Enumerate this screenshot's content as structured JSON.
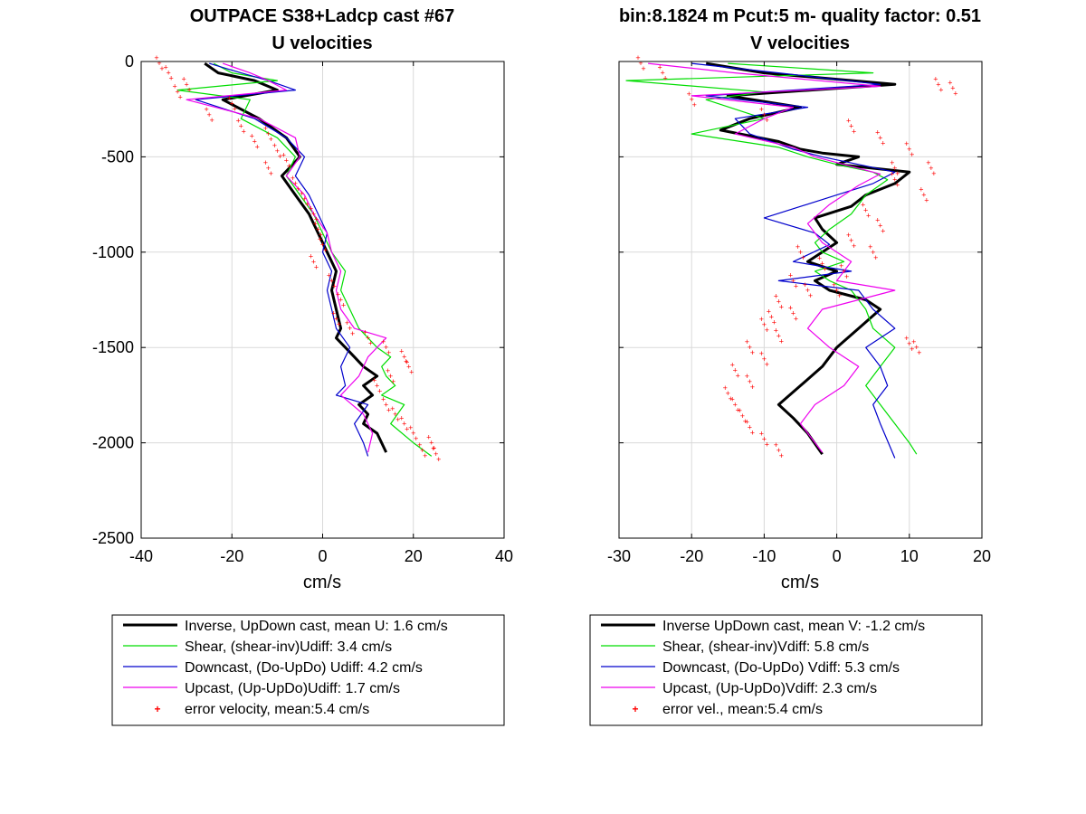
{
  "chart_data": [
    {
      "type": "line",
      "title": "OUTPACE S38+Ladcp cast #67",
      "subtitle": "U velocities",
      "xlabel": "cm/s",
      "ylabel": "",
      "xlim": [
        -40,
        40
      ],
      "ylim": [
        -2500,
        0
      ],
      "xticks": [
        "-40",
        "-20",
        "0",
        "20",
        "40"
      ],
      "yticks": [
        "0",
        "-500",
        "-1000",
        "-1500",
        "-2000",
        "-2500"
      ],
      "grid": true,
      "legend_position": "below",
      "series": [
        {
          "name": "Inverse, UpDown cast, mean U:  1.6 cm/s",
          "color": "#000000",
          "style": "thick-line",
          "x": [
            -26,
            -23,
            -15,
            -10,
            -22,
            -14,
            -8,
            -5,
            -9,
            -6,
            -3,
            -1,
            1,
            3,
            2,
            3,
            4,
            3,
            5,
            7,
            9,
            12,
            9,
            11,
            8,
            10,
            9,
            12,
            14
          ],
          "y": [
            -10,
            -60,
            -100,
            -150,
            -200,
            -300,
            -400,
            -500,
            -600,
            -700,
            -800,
            -900,
            -1000,
            -1100,
            -1200,
            -1300,
            -1400,
            -1450,
            -1500,
            -1550,
            -1600,
            -1650,
            -1700,
            -1750,
            -1800,
            -1850,
            -1900,
            -1950,
            -2050
          ]
        },
        {
          "name": "Shear, (shear-inv)Udiff:  3.4 cm/s",
          "color": "#00dd00",
          "style": "line",
          "x": [
            -24,
            -20,
            -10,
            -32,
            -16,
            -18,
            -10,
            -6,
            -8,
            -5,
            -2,
            0,
            2,
            5,
            4,
            6,
            8,
            12,
            15,
            13,
            14,
            16,
            13,
            18,
            15,
            20,
            24
          ],
          "y": [
            -10,
            -60,
            -100,
            -150,
            -200,
            -300,
            -400,
            -500,
            -600,
            -700,
            -800,
            -900,
            -1000,
            -1100,
            -1200,
            -1300,
            -1400,
            -1500,
            -1550,
            -1600,
            -1650,
            -1700,
            -1750,
            -1800,
            -1900,
            -2000,
            -2070
          ]
        },
        {
          "name": "Downcast, (Do-UpDo) Udiff:  4.2 cm/s",
          "color": "#0000cc",
          "style": "line",
          "x": [
            -25,
            -18,
            -12,
            -6,
            -28,
            -15,
            -8,
            -4,
            -6,
            -3,
            -1,
            1,
            0,
            2,
            1,
            2,
            3,
            6,
            4,
            5,
            3,
            10,
            7,
            9,
            10
          ],
          "y": [
            -10,
            -60,
            -100,
            -150,
            -200,
            -300,
            -400,
            -500,
            -600,
            -700,
            -800,
            -900,
            -1000,
            -1100,
            -1200,
            -1300,
            -1400,
            -1500,
            -1600,
            -1700,
            -1750,
            -1800,
            -1900,
            -2000,
            -2070
          ]
        },
        {
          "name": "Upcast, (Up-UpDo)Udiff:  1.7 cm/s",
          "color": "#ee00ee",
          "style": "line",
          "x": [
            -22,
            -16,
            -12,
            -8,
            -30,
            -14,
            -6,
            -5,
            -8,
            -4,
            -2,
            1,
            2,
            4,
            3,
            4,
            7,
            14,
            10,
            8,
            6,
            4,
            9,
            11,
            10
          ],
          "y": [
            -10,
            -60,
            -100,
            -150,
            -200,
            -300,
            -400,
            -500,
            -600,
            -700,
            -800,
            -900,
            -1000,
            -1100,
            -1200,
            -1300,
            -1400,
            -1450,
            -1550,
            -1650,
            -1700,
            -1750,
            -1850,
            -1950,
            -2050
          ]
        },
        {
          "name": "error velocity, mean:5.4 cm/s",
          "color": "#ff0000",
          "style": "dots",
          "x": [
            -36,
            -34,
            -30,
            -32,
            -20,
            -25,
            -18,
            -12,
            -15,
            -10,
            -8,
            -12,
            -6,
            -4,
            -2,
            -1,
            0,
            -2,
            2,
            4,
            3,
            6,
            10,
            14,
            18,
            19,
            15,
            12,
            14,
            16,
            18,
            20,
            24,
            22,
            25
          ],
          "y": [
            -10,
            -60,
            -120,
            -160,
            -220,
            -280,
            -340,
            -380,
            -420,
            -470,
            -520,
            -560,
            -640,
            -720,
            -800,
            -880,
            -960,
            -1050,
            -1150,
            -1250,
            -1350,
            -1400,
            -1450,
            -1500,
            -1550,
            -1600,
            -1650,
            -1700,
            -1800,
            -1850,
            -1900,
            -1950,
            -2000,
            -2040,
            -2060
          ]
        }
      ]
    },
    {
      "type": "line",
      "title": "bin:8.1824 m  Pcut:5 m- quality factor:  0.51",
      "subtitle": "V velocities",
      "xlabel": "cm/s",
      "ylabel": "",
      "xlim": [
        -30,
        20
      ],
      "ylim": [
        -2500,
        0
      ],
      "xticks": [
        "-30",
        "-20",
        "-10",
        "0",
        "10",
        "20"
      ],
      "yticks": [],
      "grid": true,
      "legend_position": "below",
      "series": [
        {
          "name": "Inverse UpDown cast, mean V:  -1.2 cm/s",
          "color": "#000000",
          "style": "thick-line",
          "x": [
            -18,
            -10,
            8,
            -15,
            -5,
            -12,
            -16,
            -8,
            -5,
            -2,
            3,
            0,
            10,
            8,
            4,
            2,
            -3,
            -2,
            0,
            -2,
            -4,
            0,
            -3,
            -1,
            4,
            6,
            3,
            0,
            -2,
            -5,
            -8,
            -6,
            -4,
            -2
          ],
          "y": [
            -10,
            -60,
            -120,
            -180,
            -240,
            -300,
            -360,
            -420,
            -460,
            -480,
            -500,
            -540,
            -580,
            -640,
            -700,
            -760,
            -820,
            -880,
            -950,
            -1000,
            -1050,
            -1100,
            -1150,
            -1200,
            -1250,
            -1300,
            -1400,
            -1500,
            -1600,
            -1700,
            -1800,
            -1870,
            -1950,
            -2060
          ]
        },
        {
          "name": "Shear, (shear-inv)Vdiff:  5.8 cm/s",
          "color": "#00dd00",
          "style": "line",
          "x": [
            -15,
            5,
            -29,
            -10,
            -18,
            -10,
            -20,
            -8,
            -4,
            0,
            5,
            7,
            4,
            2,
            -1,
            -3,
            -2,
            1,
            -3,
            -1,
            2,
            4,
            5,
            8,
            6,
            4,
            6,
            8,
            10,
            11
          ],
          "y": [
            -10,
            -60,
            -100,
            -160,
            -200,
            -300,
            -380,
            -450,
            -500,
            -540,
            -580,
            -620,
            -700,
            -800,
            -880,
            -950,
            -1000,
            -1050,
            -1100,
            -1150,
            -1200,
            -1300,
            -1400,
            -1500,
            -1600,
            -1700,
            -1800,
            -1900,
            -2000,
            -2060
          ]
        },
        {
          "name": "Downcast, (Do-UpDo) Vdiff:  5.3 cm/s",
          "color": "#0000cc",
          "style": "line",
          "x": [
            -20,
            -8,
            6,
            -18,
            -4,
            -14,
            -12,
            -6,
            -2,
            3,
            8,
            5,
            0,
            -10,
            -3,
            -1,
            -6,
            2,
            -8,
            3,
            5,
            8,
            4,
            6,
            7,
            5,
            6,
            8
          ],
          "y": [
            -10,
            -60,
            -120,
            -180,
            -240,
            -300,
            -380,
            -460,
            -500,
            -540,
            -580,
            -640,
            -700,
            -820,
            -900,
            -960,
            -1050,
            -1100,
            -1150,
            -1200,
            -1300,
            -1400,
            -1500,
            -1600,
            -1700,
            -1800,
            -1900,
            -2080
          ]
        },
        {
          "name": "Upcast, (Up-UpDo)Vdiff:  2.3 cm/s",
          "color": "#ee00ee",
          "style": "line",
          "x": [
            -26,
            -14,
            6,
            -20,
            -6,
            -10,
            -14,
            -6,
            -3,
            1,
            6,
            3,
            -1,
            -4,
            -2,
            2,
            0,
            8,
            -2,
            -4,
            -1,
            3,
            1,
            -3,
            -5,
            -2
          ],
          "y": [
            -10,
            -60,
            -130,
            -180,
            -240,
            -300,
            -380,
            -450,
            -500,
            -540,
            -590,
            -650,
            -750,
            -850,
            -950,
            -1050,
            -1150,
            -1200,
            -1300,
            -1400,
            -1500,
            -1600,
            -1700,
            -1800,
            -1900,
            -2050
          ]
        },
        {
          "name": "error vel., mean:5.4 cm/s",
          "color": "#ff0000",
          "style": "dots",
          "x": [
            -27,
            -24,
            14,
            16,
            -20,
            -10,
            2,
            6,
            10,
            13,
            8,
            12,
            4,
            6,
            2,
            5,
            -2,
            1,
            -6,
            -4,
            -8,
            -6,
            -10,
            -8,
            -12,
            -10,
            -14,
            -12,
            -15,
            -14,
            -13,
            -12,
            -10,
            -8,
            0,
            -5,
            10,
            11,
            8,
            -9
          ],
          "y": [
            -10,
            -60,
            -120,
            -140,
            -200,
            -280,
            -340,
            -400,
            -460,
            -560,
            -620,
            -700,
            -780,
            -860,
            -940,
            -1000,
            -1060,
            -1100,
            -1150,
            -1200,
            -1260,
            -1320,
            -1380,
            -1440,
            -1500,
            -1560,
            -1620,
            -1680,
            -1740,
            -1800,
            -1860,
            -1920,
            -1980,
            -2040,
            -1200,
            -1000,
            -1480,
            -1500,
            -560,
            -1340
          ]
        }
      ]
    }
  ]
}
